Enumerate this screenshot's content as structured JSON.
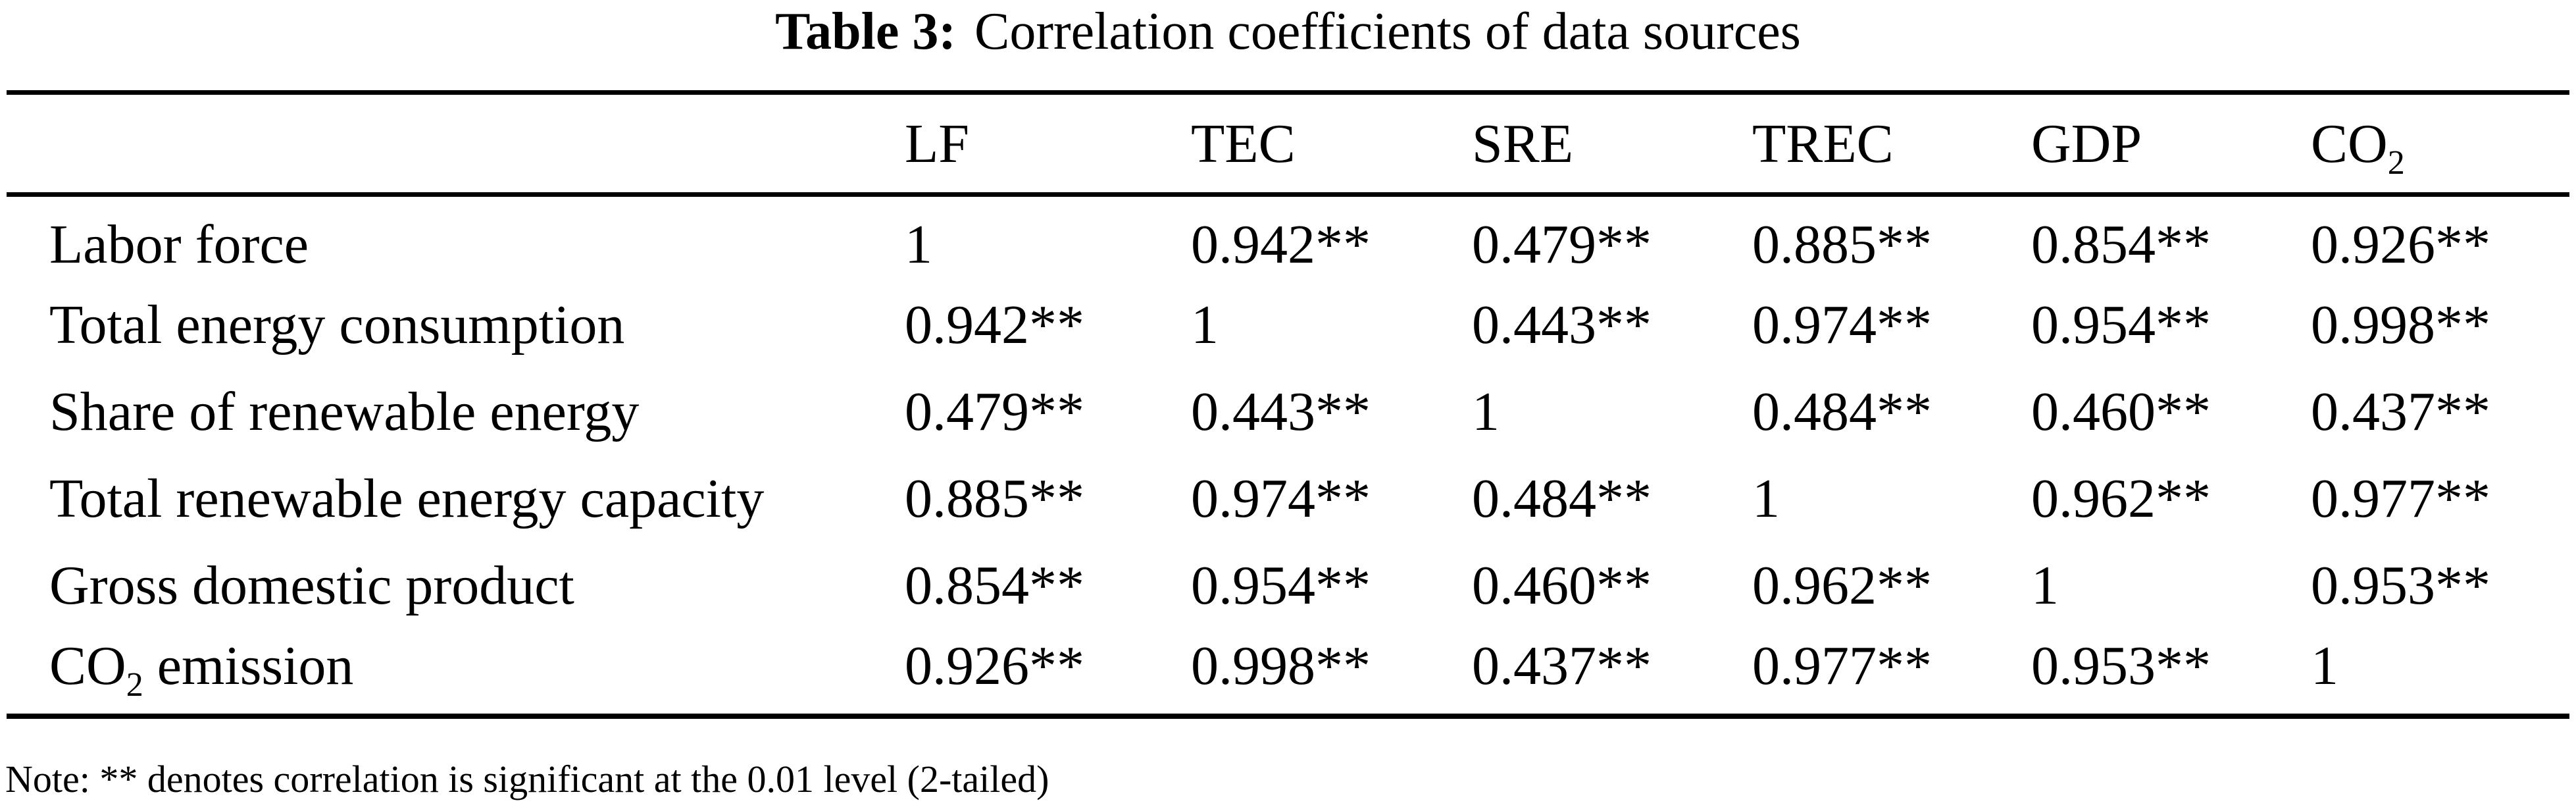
{
  "title": {
    "label": "Table 3:",
    "text": "Correlation coefficients of data sources"
  },
  "table": {
    "columns": [
      {
        "text": "LF"
      },
      {
        "text": "TEC"
      },
      {
        "text": "SRE"
      },
      {
        "text": "TREC"
      },
      {
        "text": "GDP"
      },
      {
        "text": "CO",
        "sub": "2"
      }
    ],
    "rows": [
      {
        "label": {
          "text": "Labor force"
        },
        "values": [
          "1",
          "0.942**",
          "0.479**",
          "0.885**",
          "0.854**",
          "0.926**"
        ]
      },
      {
        "label": {
          "text": "Total energy consumption"
        },
        "values": [
          "0.942**",
          "1",
          "0.443**",
          "0.974**",
          "0.954**",
          "0.998**"
        ]
      },
      {
        "label": {
          "text": "Share of renewable energy"
        },
        "values": [
          "0.479**",
          "0.443**",
          "1",
          "0.484**",
          "0.460**",
          "0.437**"
        ]
      },
      {
        "label": {
          "text": "Total renewable energy capacity"
        },
        "values": [
          "0.885**",
          "0.974**",
          "0.484**",
          "1",
          "0.962**",
          "0.977**"
        ]
      },
      {
        "label": {
          "text": "Gross domestic product"
        },
        "values": [
          "0.854**",
          "0.954**",
          "0.460**",
          "0.962**",
          "1",
          "0.953**"
        ]
      },
      {
        "label": {
          "text": "CO",
          "sub": "2",
          "rest": " emission"
        },
        "values": [
          "0.926**",
          "0.998**",
          "0.437**",
          "0.977**",
          "0.953**",
          "1"
        ]
      }
    ]
  },
  "note": "Note: ** denotes correlation is significant at the 0.01 level (2-tailed)",
  "colors": {
    "text": "#000000",
    "background": "#ffffff",
    "rule": "#000000"
  }
}
